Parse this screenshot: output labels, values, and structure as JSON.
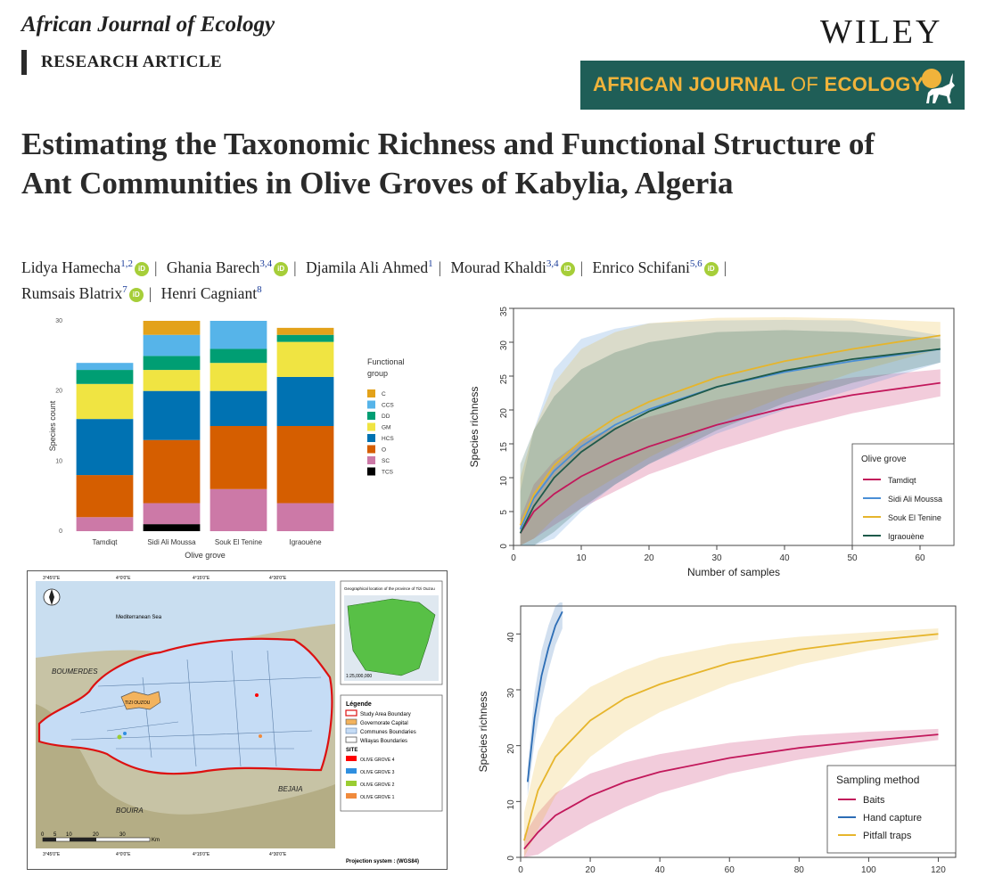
{
  "header": {
    "journal_name": "African Journal of Ecology",
    "article_type": "RESEARCH ARTICLE",
    "publisher": "WILEY",
    "banner_part1": "AFRICAN JOURNAL",
    "banner_part2": "OF",
    "banner_part3": "ECOLOGY"
  },
  "article": {
    "title": "Estimating the Taxonomic Richness and Functional Structure of Ant Communities in Olive Groves of Kabylia, Algeria",
    "authors": [
      {
        "name": "Lidya Hamecha",
        "sup": "1,2",
        "orcid": true
      },
      {
        "name": "Ghania Barech",
        "sup": "3,4",
        "orcid": true
      },
      {
        "name": "Djamila Ali Ahmed",
        "sup": "1",
        "orcid": false
      },
      {
        "name": "Mourad Khaldi",
        "sup": "3,4",
        "orcid": true
      },
      {
        "name": "Enrico Schifani",
        "sup": "5,6",
        "orcid": true
      },
      {
        "name": "Rumsais Blatrix",
        "sup": "7",
        "orcid": true
      },
      {
        "name": "Henri Cagniant",
        "sup": "8",
        "orcid": false
      }
    ],
    "orcid_label": "iD"
  },
  "colors": {
    "C": "#e3a21a",
    "CCS": "#56b4e9",
    "DD": "#009e73",
    "GM": "#f0e442",
    "HCS": "#0072b2",
    "O": "#d55e00",
    "SC": "#cc79a7",
    "TCS": "#000000",
    "Tamdiqt": "#c2185b",
    "Sidi Ali Moussa": "#4a8fd6",
    "Souk El Tenine": "#e6b52c",
    "Igraouene": "#1e5a4a",
    "Baits": "#c2185b",
    "Hand capture": "#2c6db5",
    "Pitfall traps": "#e6b52c"
  },
  "chart_data": [
    {
      "type": "bar",
      "stacked": true,
      "title": "",
      "xlabel": "Olive grove",
      "ylabel": "Species count",
      "ylim": [
        0,
        30
      ],
      "yticks": [
        "0",
        "10",
        "20",
        "30"
      ],
      "categories": [
        "Tamdiqt",
        "Sidi Ali Moussa",
        "Souk El Tenine",
        "Igraouène"
      ],
      "legend_title_1": "Functional",
      "legend_title_2": "group",
      "series": [
        {
          "name": "TCS",
          "values": [
            0,
            1,
            0,
            0
          ]
        },
        {
          "name": "SC",
          "values": [
            2,
            3,
            6,
            4
          ]
        },
        {
          "name": "O",
          "values": [
            6,
            9,
            9,
            11
          ]
        },
        {
          "name": "HCS",
          "values": [
            8,
            7,
            5,
            7
          ]
        },
        {
          "name": "GM",
          "values": [
            5,
            3,
            4,
            5
          ]
        },
        {
          "name": "DD",
          "values": [
            2,
            2,
            2,
            1
          ]
        },
        {
          "name": "CCS",
          "values": [
            1,
            3,
            4,
            0
          ]
        },
        {
          "name": "C",
          "values": [
            0,
            2,
            0,
            1
          ]
        }
      ]
    },
    {
      "type": "line",
      "title": "",
      "xlabel": "Number of samples",
      "ylabel": "Species richness",
      "xlim": [
        0,
        65
      ],
      "ylim": [
        0,
        35
      ],
      "xticks": [
        "0",
        "10",
        "20",
        "30",
        "40",
        "50",
        "60"
      ],
      "yticks": [
        "0",
        "5",
        "10",
        "15",
        "20",
        "25",
        "30",
        "35"
      ],
      "legend_title": "Olive grove",
      "series": [
        {
          "name": "Tamdiqt",
          "x": [
            1,
            3,
            6,
            10,
            15,
            20,
            30,
            40,
            50,
            63
          ],
          "y": [
            1.8,
            5.0,
            7.6,
            10.2,
            12.6,
            14.6,
            17.8,
            20.3,
            22.2,
            24.0
          ],
          "lower": [
            0,
            1,
            3,
            5.5,
            8,
            10.5,
            14,
            17,
            19.5,
            22
          ],
          "upper": [
            4,
            9,
            12.5,
            15.5,
            17.5,
            19,
            21.5,
            23.5,
            24.8,
            26
          ]
        },
        {
          "name": "Sidi Ali Moussa",
          "x": [
            1,
            3,
            6,
            10,
            15,
            20,
            30,
            40,
            50,
            63
          ],
          "y": [
            2.4,
            7.0,
            11.0,
            14.6,
            17.8,
            20.1,
            23.4,
            25.6,
            27.2,
            29.0
          ],
          "lower": [
            0,
            0,
            1,
            5,
            9,
            12,
            16.5,
            20,
            23,
            27
          ],
          "upper": [
            8,
            17,
            26,
            30.5,
            32,
            32.8,
            33.2,
            33.3,
            33.2,
            31
          ]
        },
        {
          "name": "Souk El Tenine",
          "x": [
            1,
            3,
            6,
            10,
            15,
            20,
            30,
            40,
            50,
            63
          ],
          "y": [
            3.0,
            7.5,
            11.8,
            15.5,
            18.8,
            21.2,
            24.8,
            27.2,
            29.0,
            31.0
          ],
          "lower": [
            0,
            1,
            4,
            7,
            10,
            13,
            18,
            22,
            25.5,
            29
          ],
          "upper": [
            10,
            17,
            24,
            29,
            31.5,
            32.8,
            33.6,
            33.7,
            33.5,
            33
          ]
        },
        {
          "name": "Igraouène",
          "x": [
            1,
            3,
            6,
            10,
            15,
            20,
            30,
            40,
            50,
            63
          ],
          "y": [
            1.8,
            5.8,
            10.0,
            13.8,
            17.2,
            19.8,
            23.4,
            25.8,
            27.5,
            29.0
          ],
          "lower": [
            0,
            0,
            2,
            5.5,
            9,
            12,
            17,
            21,
            24,
            27
          ],
          "upper": [
            12,
            17,
            22,
            26,
            28.5,
            30,
            31.5,
            31.8,
            31.5,
            30.5
          ]
        }
      ]
    },
    {
      "type": "line",
      "title": "",
      "xlabel": "",
      "ylabel": "Species richness",
      "xlim": [
        0,
        125
      ],
      "ylim": [
        0,
        45
      ],
      "xticks": [
        "0",
        "20",
        "40",
        "60",
        "80",
        "100",
        "120"
      ],
      "yticks": [
        "0",
        "10",
        "20",
        "30",
        "40"
      ],
      "legend_title": "Sampling method",
      "series": [
        {
          "name": "Baits",
          "x": [
            1,
            5,
            10,
            20,
            30,
            40,
            60,
            80,
            100,
            120
          ],
          "y": [
            1.5,
            4.5,
            7.5,
            11.0,
            13.5,
            15.3,
            17.8,
            19.6,
            20.9,
            22.0
          ],
          "lower": [
            0,
            0.5,
            2.5,
            6,
            9,
            11.5,
            15,
            17.5,
            19.5,
            21
          ],
          "upper": [
            4,
            8,
            11.5,
            15,
            17,
            18.5,
            20.5,
            21.8,
            22.5,
            23
          ]
        },
        {
          "name": "Hand capture",
          "x": [
            2,
            4,
            6,
            8,
            10,
            12
          ],
          "y": [
            13.5,
            25.0,
            32.5,
            37.5,
            41.5,
            44.0
          ],
          "lower": [
            11,
            20.5,
            28,
            33.5,
            38,
            41
          ],
          "upper": [
            16,
            29.5,
            37,
            41.5,
            45,
            46
          ]
        },
        {
          "name": "Pitfall traps",
          "x": [
            1,
            5,
            10,
            20,
            30,
            40,
            60,
            80,
            100,
            120
          ],
          "y": [
            3.0,
            12.0,
            18.0,
            24.5,
            28.5,
            31.0,
            34.8,
            37.2,
            38.8,
            40.0
          ],
          "lower": [
            0,
            5,
            11,
            18,
            22.5,
            26,
            31,
            34.5,
            37,
            39
          ],
          "upper": [
            8,
            19,
            25,
            30.5,
            33.5,
            35.8,
            38.2,
            39.5,
            40.3,
            41
          ]
        }
      ]
    }
  ],
  "map": {
    "inset_title": "Geographical location of the province of Tizi Ouzou",
    "inset_scale": "1:25,000,000",
    "sea_label": "Mediterranean Sea",
    "region_labels": [
      "BOUMERDES",
      "BOUIRA",
      "BEJAIA"
    ],
    "capital_label": "TIZI OUZOU",
    "legend_title": "Légende",
    "legend_items": [
      "Study Area Boundary",
      "Governorate Capital",
      "Communes Boundaries",
      "Wilayas Boundaries"
    ],
    "site_title": "SITE",
    "site_items": [
      "OLIVE GROVE 4",
      "OLIVE GROVE 3",
      "OLIVE GROVE 2",
      "OLIVE GROVE 1"
    ],
    "site_colors": [
      "#ff0000",
      "#2f8fe0",
      "#9acd32",
      "#f08a3c"
    ],
    "top_ticks": [
      "3°45'0\"E",
      "4°0'0\"E",
      "4°15'0\"E",
      "4°30'0\"E"
    ],
    "bottom_ticks": [
      "3°45'0\"E",
      "4°0'0\"E",
      "4°15'0\"E",
      "4°30'0\"E"
    ],
    "scale_labels": [
      "0",
      "5",
      "10",
      "20",
      "30"
    ],
    "scale_unit": "Km",
    "projection": "Projection system : (WGS84)"
  }
}
